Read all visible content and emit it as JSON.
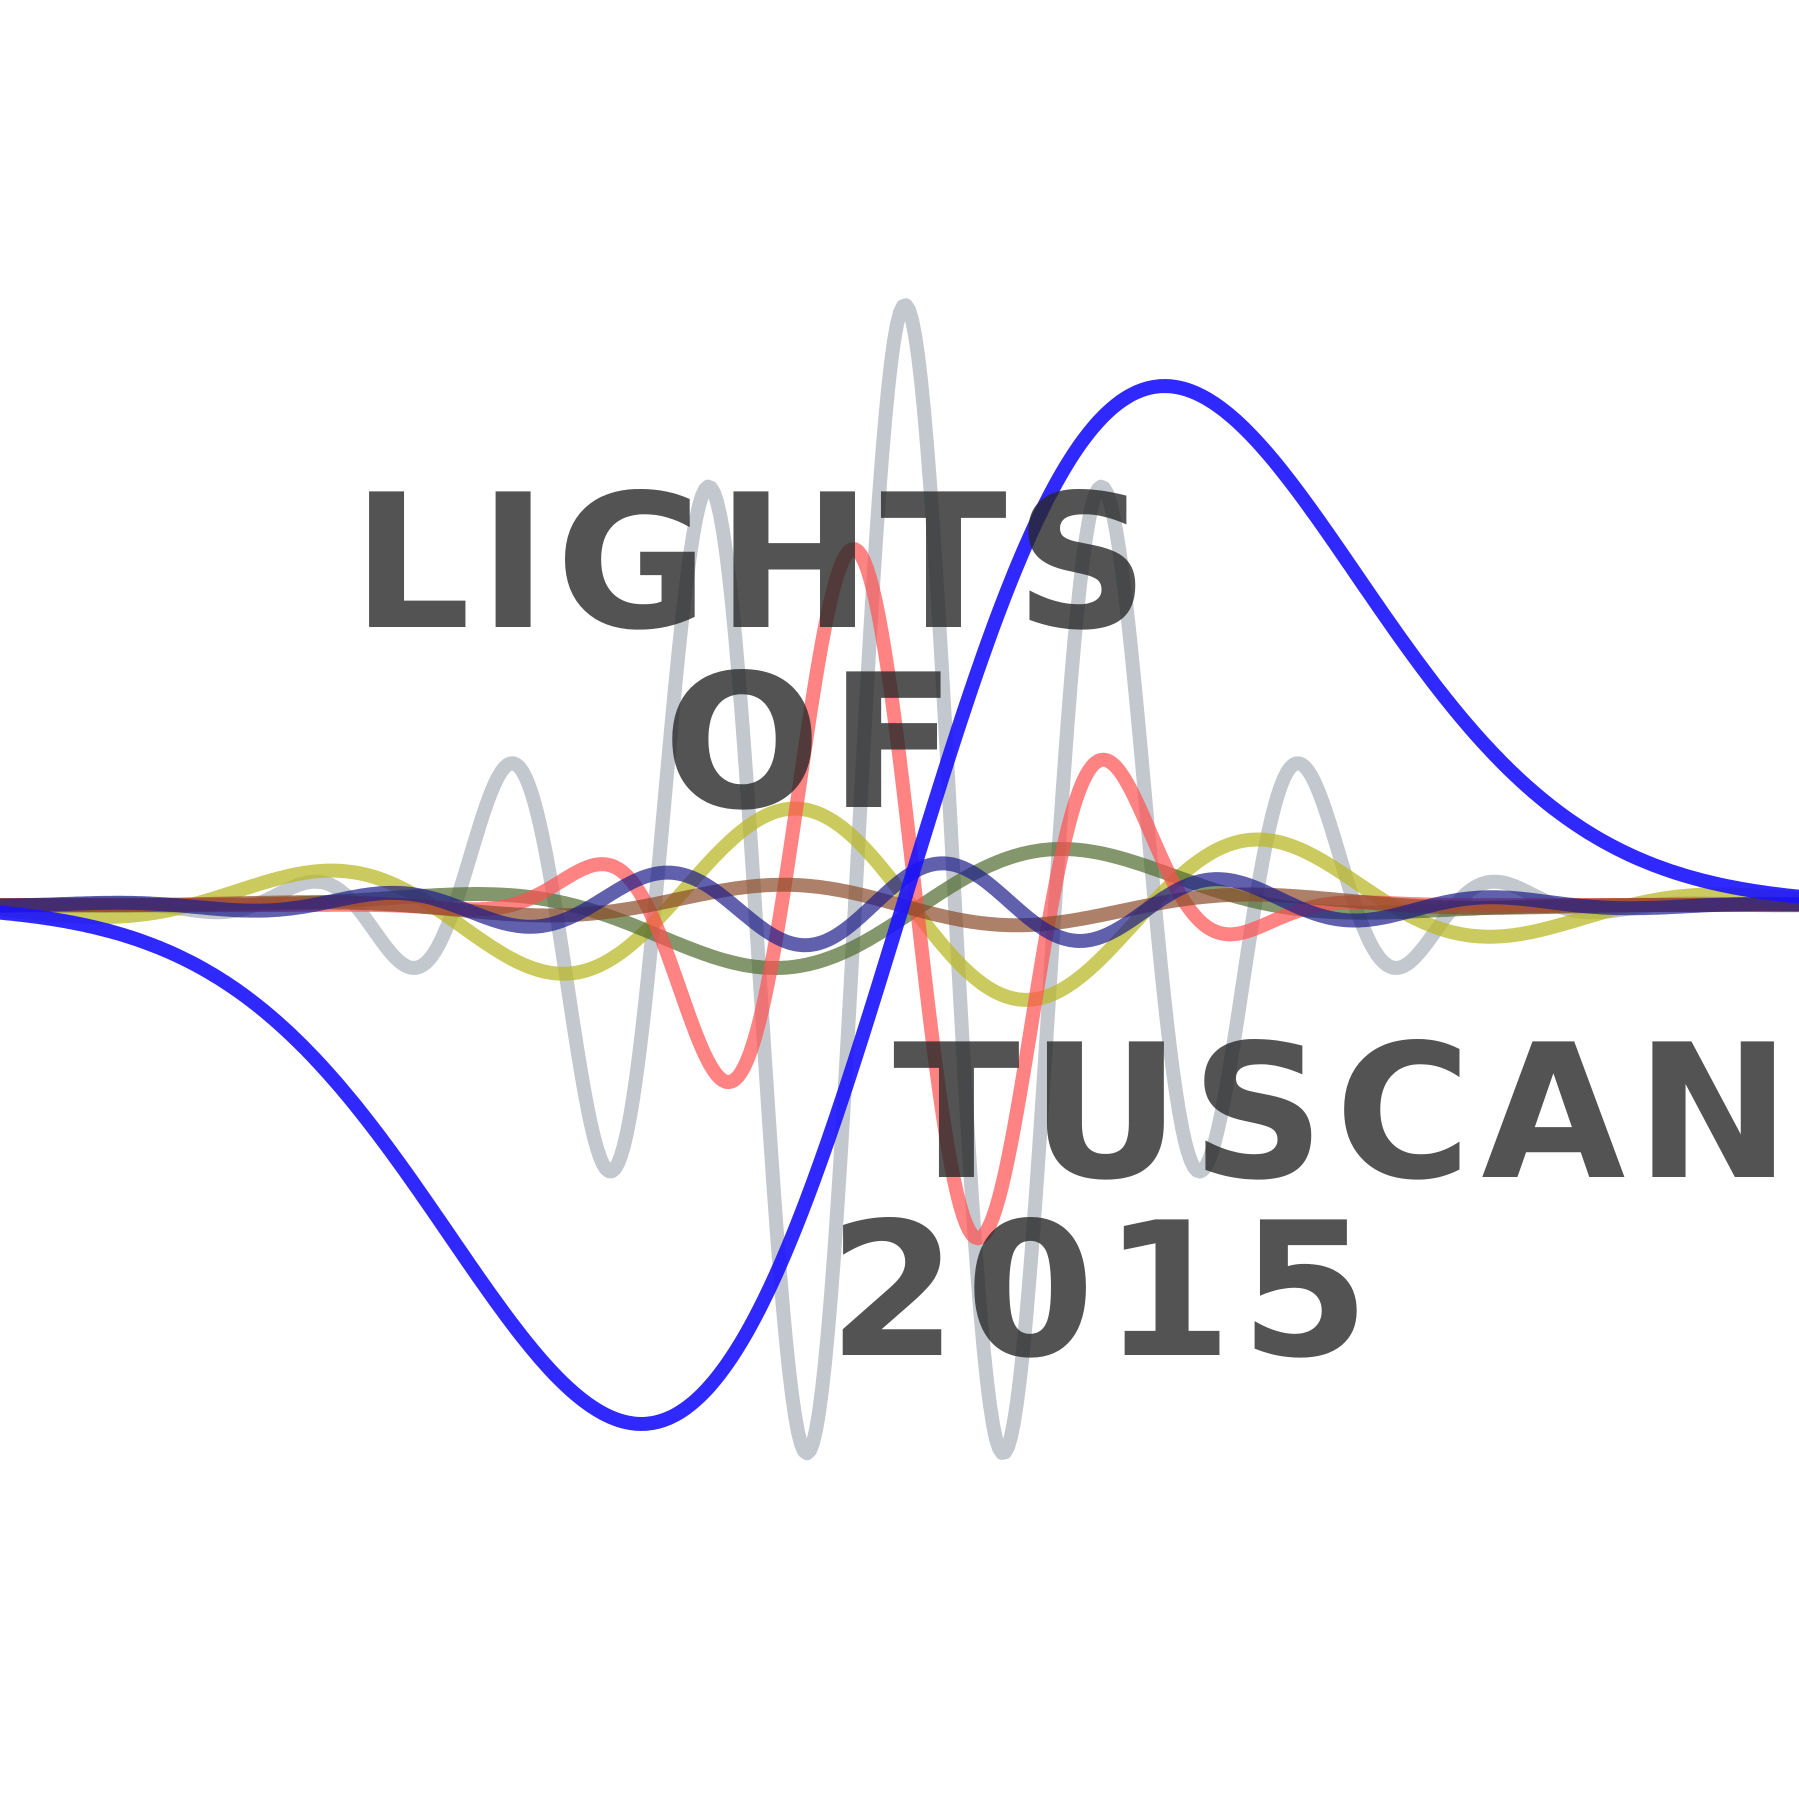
{
  "title": {
    "line1": "LIGHTS",
    "line2": "OF",
    "line3": "TUSCANY",
    "line4": "2015"
  },
  "waves": [
    {
      "name": "gray-wave",
      "color": "#c3c8ce",
      "opacity": 1.0
    },
    {
      "name": "yellow-wave",
      "color": "#b9b82a",
      "opacity": 0.75
    },
    {
      "name": "olive-wave",
      "color": "#4f6a2e",
      "opacity": 0.7
    },
    {
      "name": "red-wave",
      "color": "#ff4f4f",
      "opacity": 0.7
    },
    {
      "name": "brown-wave",
      "color": "#8a4b2a",
      "opacity": 0.7
    },
    {
      "name": "navy-wave",
      "color": "#1d1d8a",
      "opacity": 0.7
    },
    {
      "name": "blue-wave",
      "color": "#1a12ff",
      "opacity": 0.9
    }
  ]
}
